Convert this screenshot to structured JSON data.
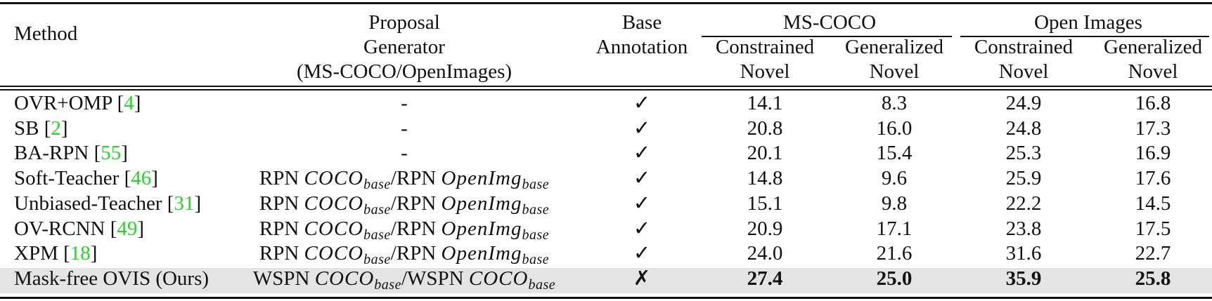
{
  "header": {
    "method": "Method",
    "proposal": [
      "Proposal",
      "Generator",
      "(MS-COCO/OpenImages)"
    ],
    "base_annotation": [
      "Base",
      "Annotation"
    ],
    "groups": [
      "MS-COCO",
      "Open Images"
    ],
    "subcols": [
      [
        "Constrained",
        "Novel"
      ],
      [
        "Generalized",
        "Novel"
      ],
      [
        "Constrained",
        "Novel"
      ],
      [
        "Generalized",
        "Novel"
      ]
    ]
  },
  "highlight_color": "#e4e4e4",
  "citation_color": "#22d822",
  "rows": [
    {
      "method": "OVR+OMP",
      "cite": "4",
      "proposal": "-",
      "base": "✓",
      "values": [
        "14.1",
        "8.3",
        "24.9",
        "16.8"
      ]
    },
    {
      "method": "SB",
      "cite": "2",
      "proposal": "-",
      "base": "✓",
      "values": [
        "20.8",
        "16.0",
        "24.8",
        "17.3"
      ]
    },
    {
      "method": "BA-RPN",
      "cite": "55",
      "proposal": "-",
      "base": "✓",
      "values": [
        "20.1",
        "15.4",
        "25.3",
        "16.9"
      ]
    },
    {
      "method": "Soft-Teacher",
      "cite": "46",
      "proposal": {
        "a": "RPN ",
        "a_set": "COCO",
        "a_sub": "base",
        "b": "/RPN ",
        "b_set": "OpenImg",
        "b_sub": "base"
      },
      "base": "✓",
      "values": [
        "14.8",
        "9.6",
        "25.9",
        "17.6"
      ]
    },
    {
      "method": "Unbiased-Teacher",
      "cite": "31",
      "proposal": {
        "a": "RPN ",
        "a_set": "COCO",
        "a_sub": "base",
        "b": "/RPN ",
        "b_set": "OpenImg",
        "b_sub": "base"
      },
      "base": "✓",
      "values": [
        "15.1",
        "9.8",
        "22.2",
        "14.5"
      ]
    },
    {
      "method": "OV-RCNN",
      "cite": "49",
      "proposal": {
        "a": "RPN ",
        "a_set": "COCO",
        "a_sub": "base",
        "b": "/RPN ",
        "b_set": "OpenImg",
        "b_sub": "base"
      },
      "base": "✓",
      "values": [
        "20.9",
        "17.1",
        "23.8",
        "17.5"
      ]
    },
    {
      "method": "XPM",
      "cite": "18",
      "proposal": {
        "a": "RPN ",
        "a_set": "COCO",
        "a_sub": "base",
        "b": "/RPN ",
        "b_set": "OpenImg",
        "b_sub": "base"
      },
      "base": "✓",
      "values": [
        "24.0",
        "21.6",
        "31.6",
        "22.7"
      ]
    },
    {
      "method": "Mask-free OVIS (Ours)",
      "cite": "",
      "proposal": {
        "a": "WSPN ",
        "a_set": "COCO",
        "a_sub": "base",
        "b": "/WSPN ",
        "b_set": "COCO",
        "b_sub": "base"
      },
      "base": "✗",
      "values": [
        "27.4",
        "25.0",
        "35.9",
        "25.8"
      ],
      "highlight": true,
      "bold_values": true
    }
  ]
}
